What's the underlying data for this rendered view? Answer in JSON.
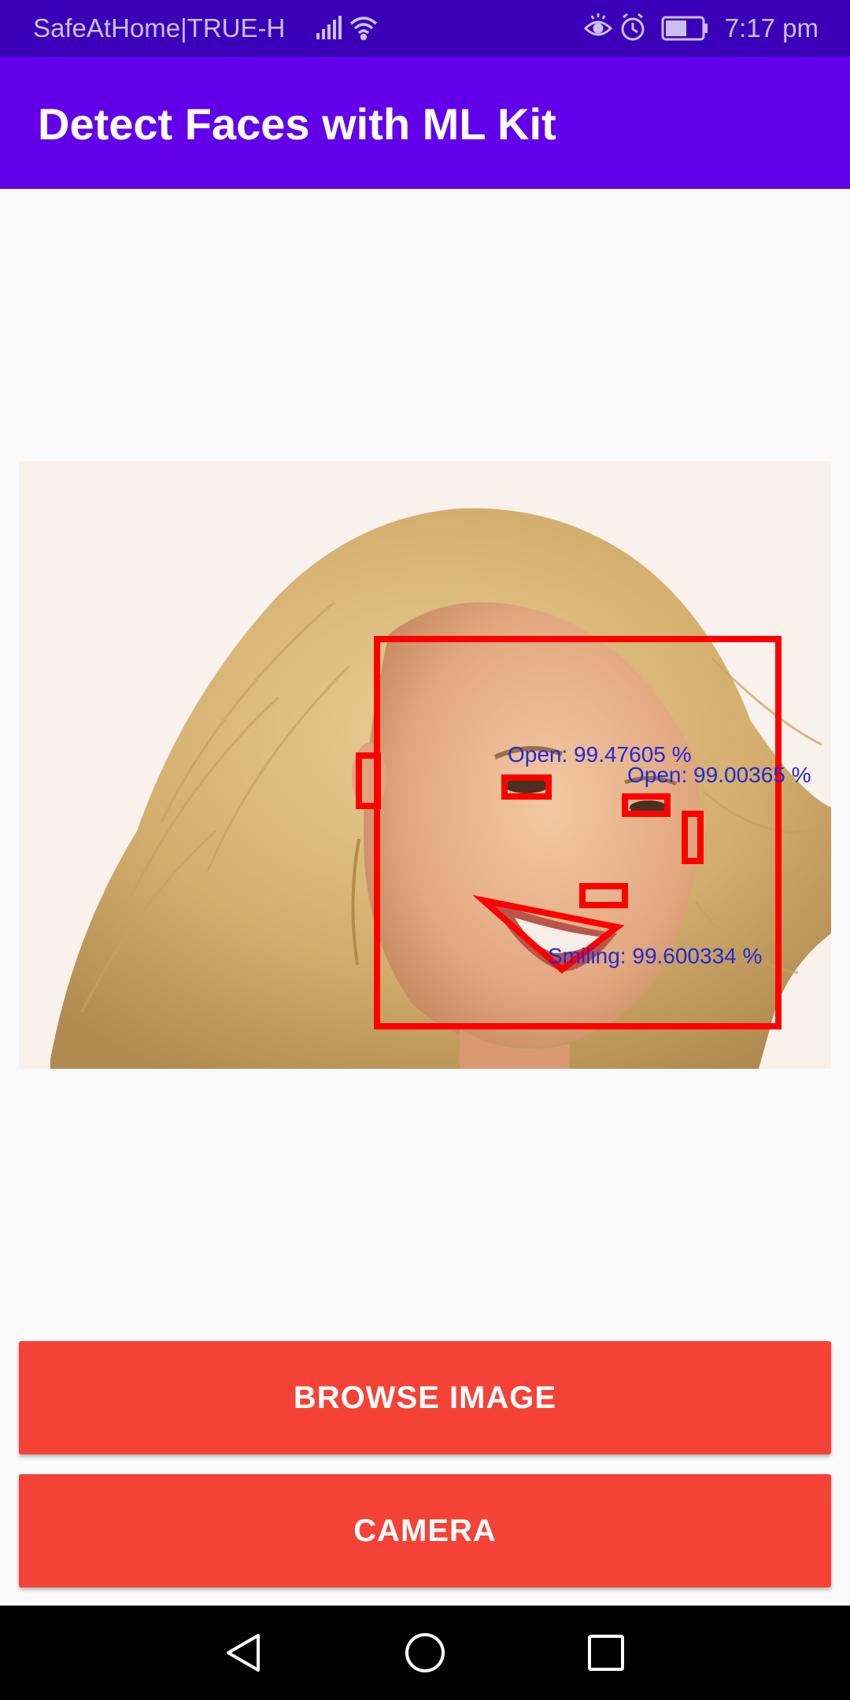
{
  "status_bar": {
    "carrier": "SafeAtHome|TRUE-H",
    "time": "7:17 pm",
    "icons": [
      "signal-icon",
      "wifi-icon",
      "eye-icon",
      "alarm-icon",
      "battery-icon"
    ]
  },
  "app_bar": {
    "title": "Detect Faces with ML Kit"
  },
  "detection": {
    "left_eye_label": "Open:  99.47605 %",
    "right_eye_label": "Open:  99.00365 %",
    "smile_label": "Smiling:  99.600334 %",
    "box_color": "#ff0000",
    "label_color": "#1f2bd6"
  },
  "buttons": {
    "browse_label": "BROWSE IMAGE",
    "camera_label": "CAMERA",
    "color": "#f44336"
  },
  "nav_bar": {
    "icons": [
      "back-icon",
      "home-icon",
      "recents-icon"
    ]
  }
}
